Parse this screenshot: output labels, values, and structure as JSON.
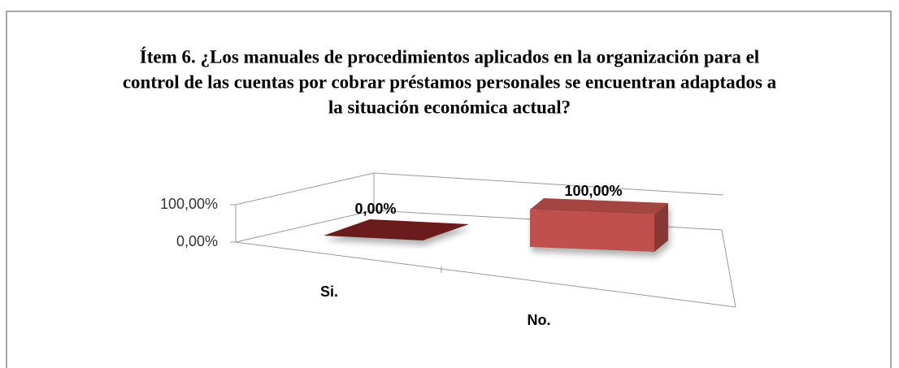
{
  "chart_data": {
    "type": "bar",
    "title": [
      "Ítem 6. ¿Los manuales de procedimientos aplicados en la organización para el",
      "control de las cuentas por cobrar préstamos personales se encuentran adaptados a",
      "la situación económica actual?"
    ],
    "categories": [
      "Si.",
      "No."
    ],
    "values": [
      0,
      100
    ],
    "value_labels": [
      "0,00%",
      "100,00%"
    ],
    "colors": [
      "#6a1f1f",
      "#c0504d"
    ],
    "ylim": [
      0,
      100
    ],
    "yticks": [
      {
        "value": 0,
        "label": "0,00%"
      },
      {
        "value": 100,
        "label": "100,00%"
      }
    ]
  }
}
